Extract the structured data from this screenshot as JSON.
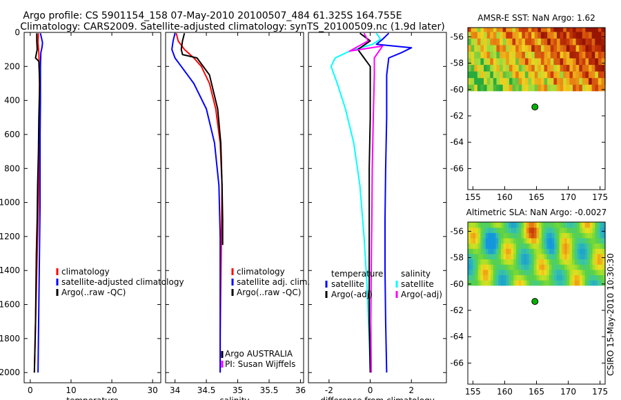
{
  "title": {
    "line1": "Argo profile: CS 5901154_158 07-May-2010 20100507_484 61.325S 164.755E",
    "line2": "Climatology: CARS2009. Satellite-adjusted climatology: synTS_20100509.nc (1.9d later)"
  },
  "side_stamp": "CSIRO 15-May-2010 10:30:30",
  "colors": {
    "red": "#ff0000",
    "blue": "#0000ff",
    "black": "#000000",
    "cyan": "#00ffff",
    "magenta": "#ff00ff",
    "marker": "#00b000"
  },
  "chart_data": [
    {
      "type": "line",
      "id": "temperature",
      "xlabel": "temperature",
      "xlim": [
        -1.5,
        32
      ],
      "ylim": [
        0,
        2060
      ],
      "xticks": [
        0,
        10,
        20,
        30
      ],
      "yticks": [
        0,
        200,
        400,
        600,
        800,
        1000,
        1200,
        1400,
        1600,
        1800,
        2000
      ],
      "legend": [
        "climatology",
        "satellite-adjusted climatology",
        "Argo(..raw -QC)"
      ],
      "series": [
        {
          "name": "climatology",
          "color": "#ff0000",
          "points": [
            [
              2.0,
              5
            ],
            [
              1.9,
              60
            ],
            [
              2.1,
              120
            ],
            [
              2.2,
              200
            ],
            [
              2.3,
              400
            ],
            [
              2.2,
              600
            ],
            [
              2.1,
              800
            ],
            [
              2.0,
              1000
            ],
            [
              1.8,
              1200
            ],
            [
              1.6,
              1400
            ],
            [
              1.4,
              1600
            ],
            [
              1.2,
              1800
            ],
            [
              1.0,
              2000
            ]
          ]
        },
        {
          "name": "satellite-adjusted climatology",
          "color": "#0000ff",
          "points": [
            [
              2.5,
              5
            ],
            [
              3.0,
              60
            ],
            [
              2.9,
              85
            ],
            [
              2.6,
              120
            ],
            [
              2.5,
              200
            ],
            [
              2.5,
              400
            ],
            [
              2.4,
              600
            ],
            [
              2.4,
              800
            ],
            [
              2.4,
              1000
            ],
            [
              2.3,
              1200
            ],
            [
              2.2,
              1400
            ],
            [
              2.1,
              1600
            ],
            [
              2.0,
              1800
            ],
            [
              1.9,
              2000
            ]
          ]
        },
        {
          "name": "Argo(..raw -QC)",
          "color": "#000000",
          "points": [
            [
              1.6,
              5
            ],
            [
              1.6,
              50
            ],
            [
              1.7,
              100
            ],
            [
              1.3,
              150
            ],
            [
              2.1,
              170
            ],
            [
              2.3,
              300
            ],
            [
              2.1,
              500
            ],
            [
              2.0,
              700
            ],
            [
              1.8,
              900
            ],
            [
              1.7,
              1100
            ],
            [
              1.5,
              1300
            ],
            [
              1.4,
              1500
            ],
            [
              1.3,
              1700
            ],
            [
              1.1,
              1900
            ],
            [
              1.0,
              2000
            ]
          ]
        }
      ]
    },
    {
      "type": "line",
      "id": "salinity",
      "xlabel": "salinity",
      "xlim": [
        33.85,
        36.05
      ],
      "ylim": [
        0,
        2060
      ],
      "xticks": [
        34,
        34.5,
        35,
        35.5,
        36
      ],
      "legend": [
        "climatology",
        "satellite adj. clim.",
        "Argo(..raw -QC)"
      ],
      "annotation": [
        "Argo AUSTRALIA",
        "PI: Susan Wijffels"
      ],
      "series": [
        {
          "name": "climatology",
          "color": "#ff0000",
          "points": [
            [
              34.02,
              5
            ],
            [
              34.05,
              50
            ],
            [
              34.15,
              100
            ],
            [
              34.3,
              150
            ],
            [
              34.42,
              200
            ],
            [
              34.55,
              300
            ],
            [
              34.65,
              450
            ],
            [
              34.72,
              650
            ],
            [
              34.75,
              900
            ],
            [
              34.74,
              1200
            ],
            [
              34.73,
              1500
            ],
            [
              34.72,
              1800
            ],
            [
              34.72,
              2000
            ]
          ]
        },
        {
          "name": "satellite adj. clim.",
          "color": "#0000ff",
          "points": [
            [
              34.0,
              5
            ],
            [
              33.97,
              50
            ],
            [
              33.95,
              100
            ],
            [
              34.0,
              150
            ],
            [
              34.1,
              200
            ],
            [
              34.3,
              300
            ],
            [
              34.5,
              450
            ],
            [
              34.63,
              650
            ],
            [
              34.7,
              900
            ],
            [
              34.72,
              1200
            ],
            [
              34.72,
              1500
            ],
            [
              34.72,
              1800
            ],
            [
              34.72,
              2000
            ]
          ]
        },
        {
          "name": "Argo(..raw -QC)",
          "color": "#000000",
          "points": [
            [
              34.15,
              5
            ],
            [
              34.12,
              50
            ],
            [
              34.1,
              100
            ],
            [
              34.12,
              130
            ],
            [
              34.35,
              150
            ],
            [
              34.55,
              250
            ],
            [
              34.68,
              450
            ],
            [
              34.73,
              650
            ],
            [
              34.75,
              900
            ],
            [
              34.76,
              1100
            ],
            [
              34.76,
              1250
            ]
          ]
        }
      ]
    },
    {
      "type": "line",
      "id": "difference",
      "xlabel": "difference from climatology",
      "xlim": [
        -3.0,
        3.7
      ],
      "ylim": [
        0,
        2060
      ],
      "xticks": [
        -2,
        0,
        2
      ],
      "legend_left": [
        "temperature",
        "satellite",
        "Argo(-adj)"
      ],
      "legend_right": [
        "salinity",
        "satellite",
        "Argo(-adj)"
      ],
      "series": [
        {
          "name": "temperature satellite",
          "color": "#0000ff",
          "points": [
            [
              0.9,
              5
            ],
            [
              0.6,
              40
            ],
            [
              0.3,
              70
            ],
            [
              2.0,
              90
            ],
            [
              1.5,
              120
            ],
            [
              0.9,
              150
            ],
            [
              0.8,
              250
            ],
            [
              0.8,
              500
            ],
            [
              0.75,
              800
            ],
            [
              0.72,
              1100
            ],
            [
              0.72,
              1400
            ],
            [
              0.75,
              1700
            ],
            [
              0.8,
              2000
            ]
          ]
        },
        {
          "name": "salinity satellite",
          "color": "#00ffff",
          "points": [
            [
              0.3,
              5
            ],
            [
              0.5,
              40
            ],
            [
              0.1,
              70
            ],
            [
              -1.0,
              110
            ],
            [
              -1.7,
              150
            ],
            [
              -1.9,
              200
            ],
            [
              -1.6,
              300
            ],
            [
              -1.2,
              450
            ],
            [
              -0.8,
              650
            ],
            [
              -0.5,
              900
            ],
            [
              -0.3,
              1200
            ],
            [
              -0.15,
              1500
            ],
            [
              -0.05,
              1800
            ],
            [
              0.0,
              2000
            ]
          ]
        },
        {
          "name": "temperature Argo(-adj)",
          "color": "#000000",
          "points": [
            [
              -0.5,
              5
            ],
            [
              0.0,
              50
            ],
            [
              -0.6,
              100
            ],
            [
              -0.3,
              150
            ],
            [
              0.0,
              200
            ],
            [
              0.0,
              500
            ],
            [
              -0.05,
              800
            ],
            [
              -0.05,
              1100
            ],
            [
              -0.05,
              1400
            ],
            [
              -0.05,
              1700
            ],
            [
              0.0,
              2000
            ]
          ]
        },
        {
          "name": "salinity Argo(-adj)",
          "color": "#ff00ff",
          "points": [
            [
              -0.3,
              5
            ],
            [
              -0.1,
              50
            ],
            [
              -1.0,
              110
            ],
            [
              0.6,
              80
            ],
            [
              0.2,
              150
            ],
            [
              0.2,
              250
            ],
            [
              0.15,
              500
            ],
            [
              0.1,
              800
            ],
            [
              0.08,
              1100
            ],
            [
              0.05,
              1400
            ],
            [
              0.03,
              1700
            ],
            [
              0.05,
              2000
            ]
          ]
        }
      ]
    },
    {
      "type": "heatmap",
      "id": "amsr-sst",
      "title": "AMSR-E SST: NaN Argo: 1.62",
      "xlim": [
        154.2,
        175.8
      ],
      "ylim": [
        -67.6,
        -55.3
      ],
      "xticks": [
        155,
        160,
        165,
        170,
        175
      ],
      "yticks": [
        -56,
        -58,
        -60,
        -62,
        -64,
        -66
      ],
      "data_ylim": [
        -60.1,
        -55.3
      ],
      "palette": "sst",
      "marker": {
        "lon": 164.755,
        "lat": -61.325
      }
    },
    {
      "type": "heatmap",
      "id": "altimetric-sla",
      "title": "Altimetric SLA: NaN Argo: -0.0027",
      "xlim": [
        154.2,
        175.8
      ],
      "ylim": [
        -67.6,
        -55.3
      ],
      "xticks": [
        155,
        160,
        165,
        170,
        175
      ],
      "yticks": [
        -56,
        -58,
        -60,
        -62,
        -64,
        -66
      ],
      "data_ylim": [
        -60.1,
        -55.3
      ],
      "palette": "sla",
      "marker": {
        "lon": 164.755,
        "lat": -61.325
      }
    }
  ]
}
